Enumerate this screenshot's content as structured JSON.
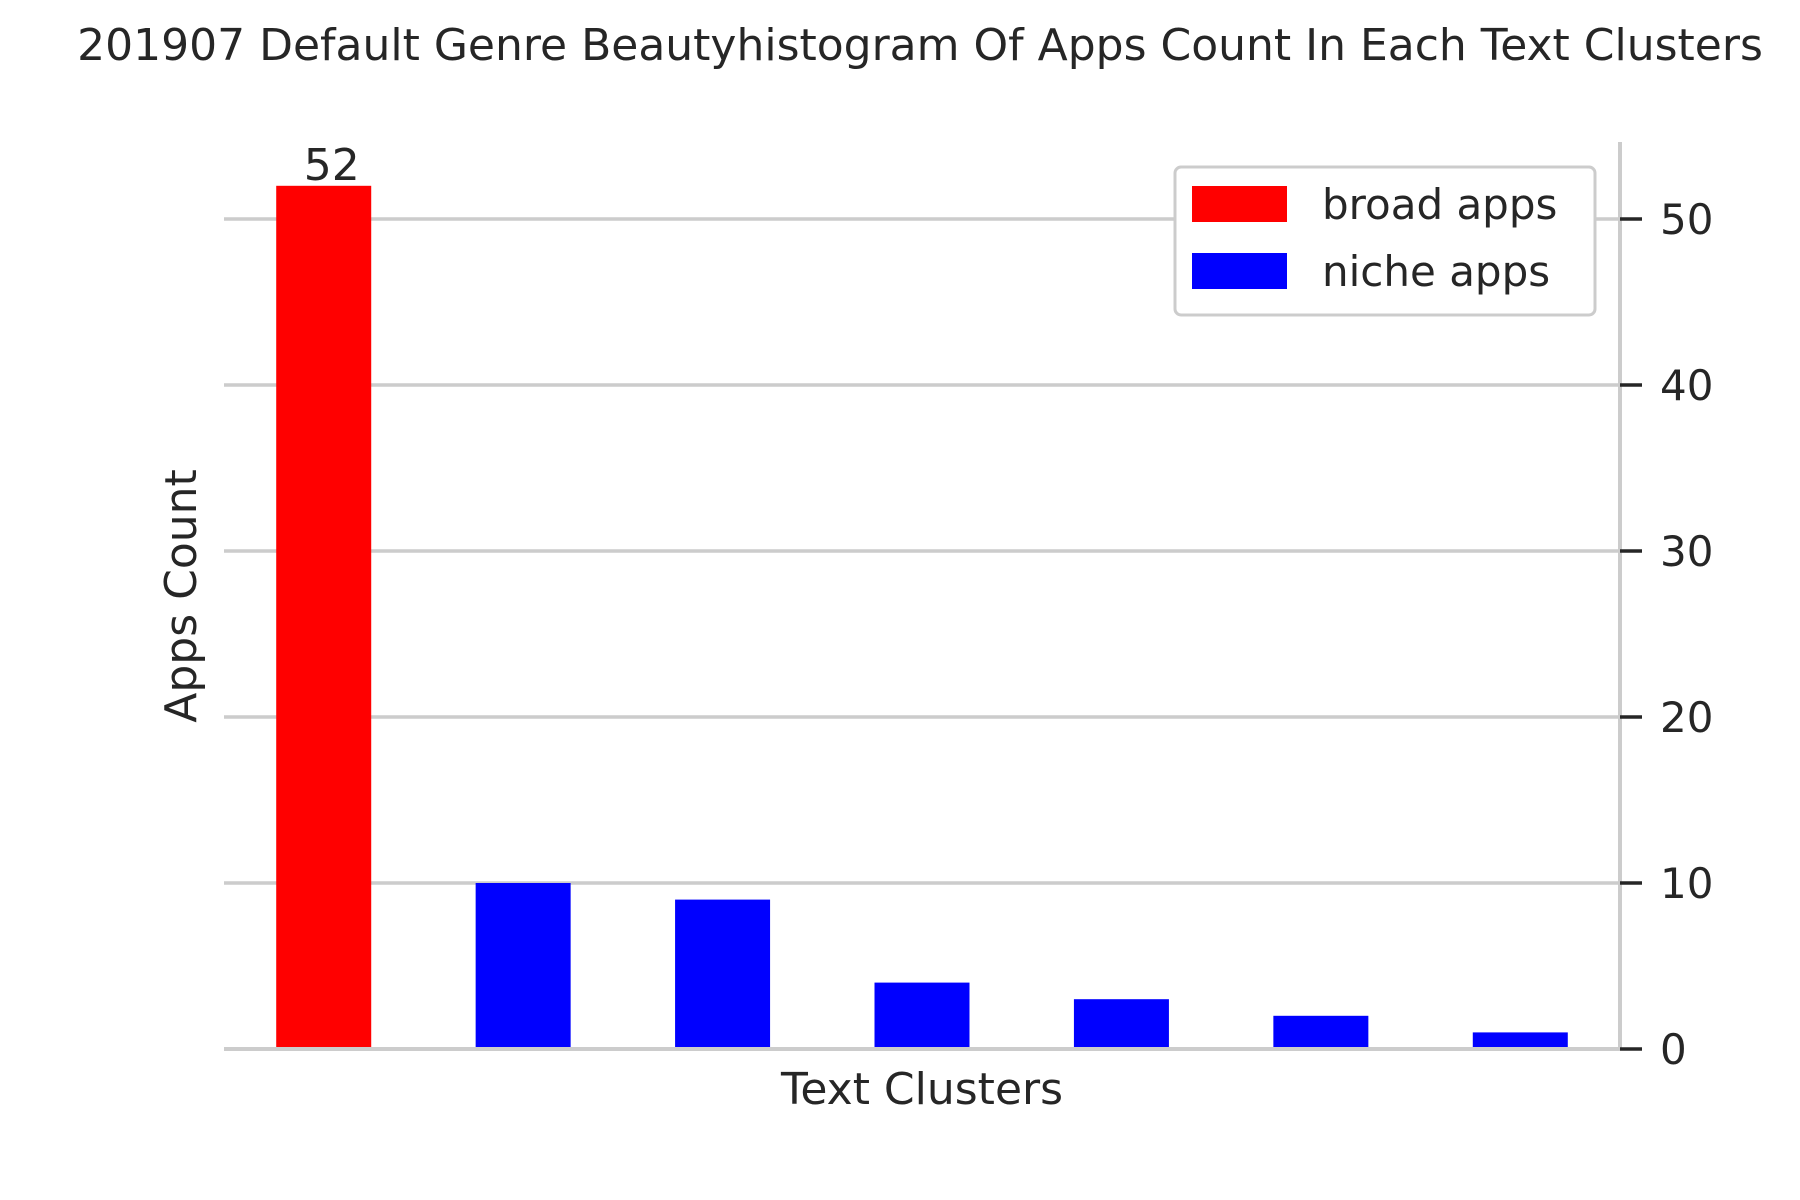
{
  "chart_data": {
    "type": "bar",
    "title": "201907 Default Genre Beautyhistogram Of Apps Count In Each Text Clusters",
    "xlabel": "Text Clusters",
    "ylabel": "Apps Count",
    "ylim": [
      0,
      55
    ],
    "yticks": [
      0,
      10,
      20,
      30,
      40,
      50
    ],
    "y_axis_side": "right",
    "grid": "horizontal",
    "legend_position": "top-right",
    "series": [
      {
        "name": "broad apps",
        "color": "#ff0000"
      },
      {
        "name": "niche apps",
        "color": "#0000ff"
      }
    ],
    "bars": [
      {
        "value": 52,
        "series": 0,
        "label": "52"
      },
      {
        "value": 10,
        "series": 1
      },
      {
        "value": 9,
        "series": 1
      },
      {
        "value": 4,
        "series": 1
      },
      {
        "value": 3,
        "series": 1
      },
      {
        "value": 2,
        "series": 1
      },
      {
        "value": 1,
        "series": 1
      }
    ]
  }
}
